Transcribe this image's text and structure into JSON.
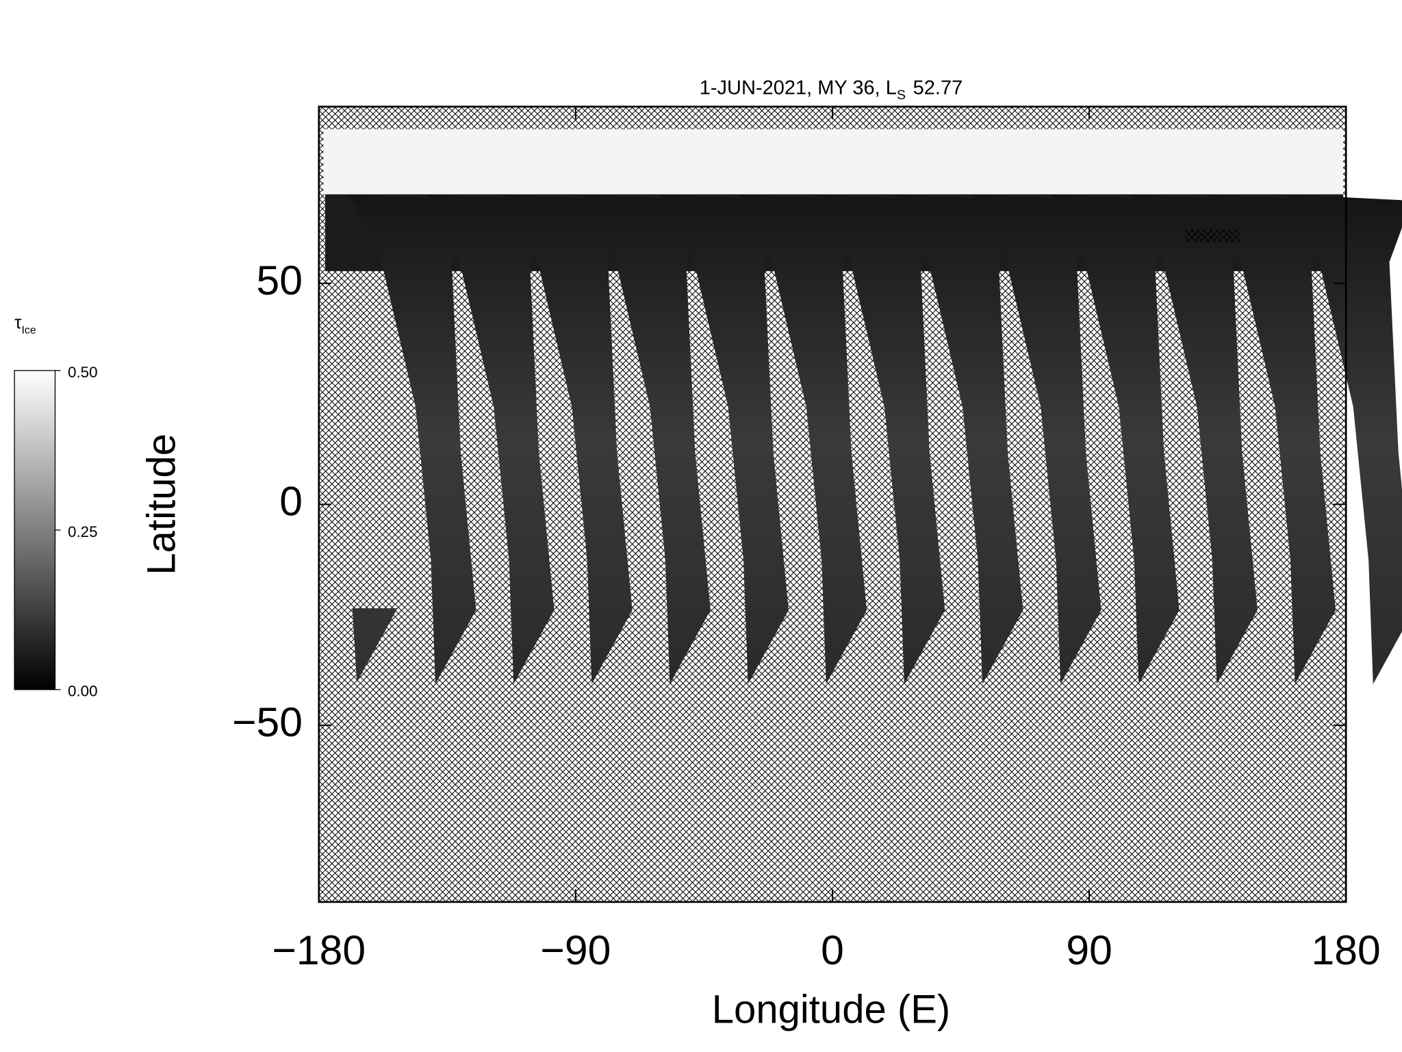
{
  "chart_data": {
    "type": "map",
    "title": {
      "text": "1-JUN-2021, MY 36,  L",
      "subscript": "S",
      "suffix": "52.77"
    },
    "xlabel": "Longitude (E)",
    "ylabel": "Latitude",
    "xlim": [
      -180,
      180
    ],
    "ylim": [
      -90,
      90
    ],
    "xticks": [
      {
        "value": -180,
        "label": "−180"
      },
      {
        "value": -90,
        "label": "−90"
      },
      0,
      90,
      180
    ],
    "yticks": [
      {
        "value": -50,
        "label": "−50"
      },
      0,
      50
    ],
    "colorbar": {
      "label": "τ",
      "label_subscript": "Ice",
      "lim": [
        0,
        0.5
      ],
      "ticks": [
        {
          "value": 0,
          "label": "0.00"
        },
        {
          "value": 0.25,
          "label": "0.25"
        },
        {
          "value": 0.5,
          "label": "0.50"
        }
      ],
      "colors": [
        "#000000",
        "#ffffff"
      ]
    }
  }
}
